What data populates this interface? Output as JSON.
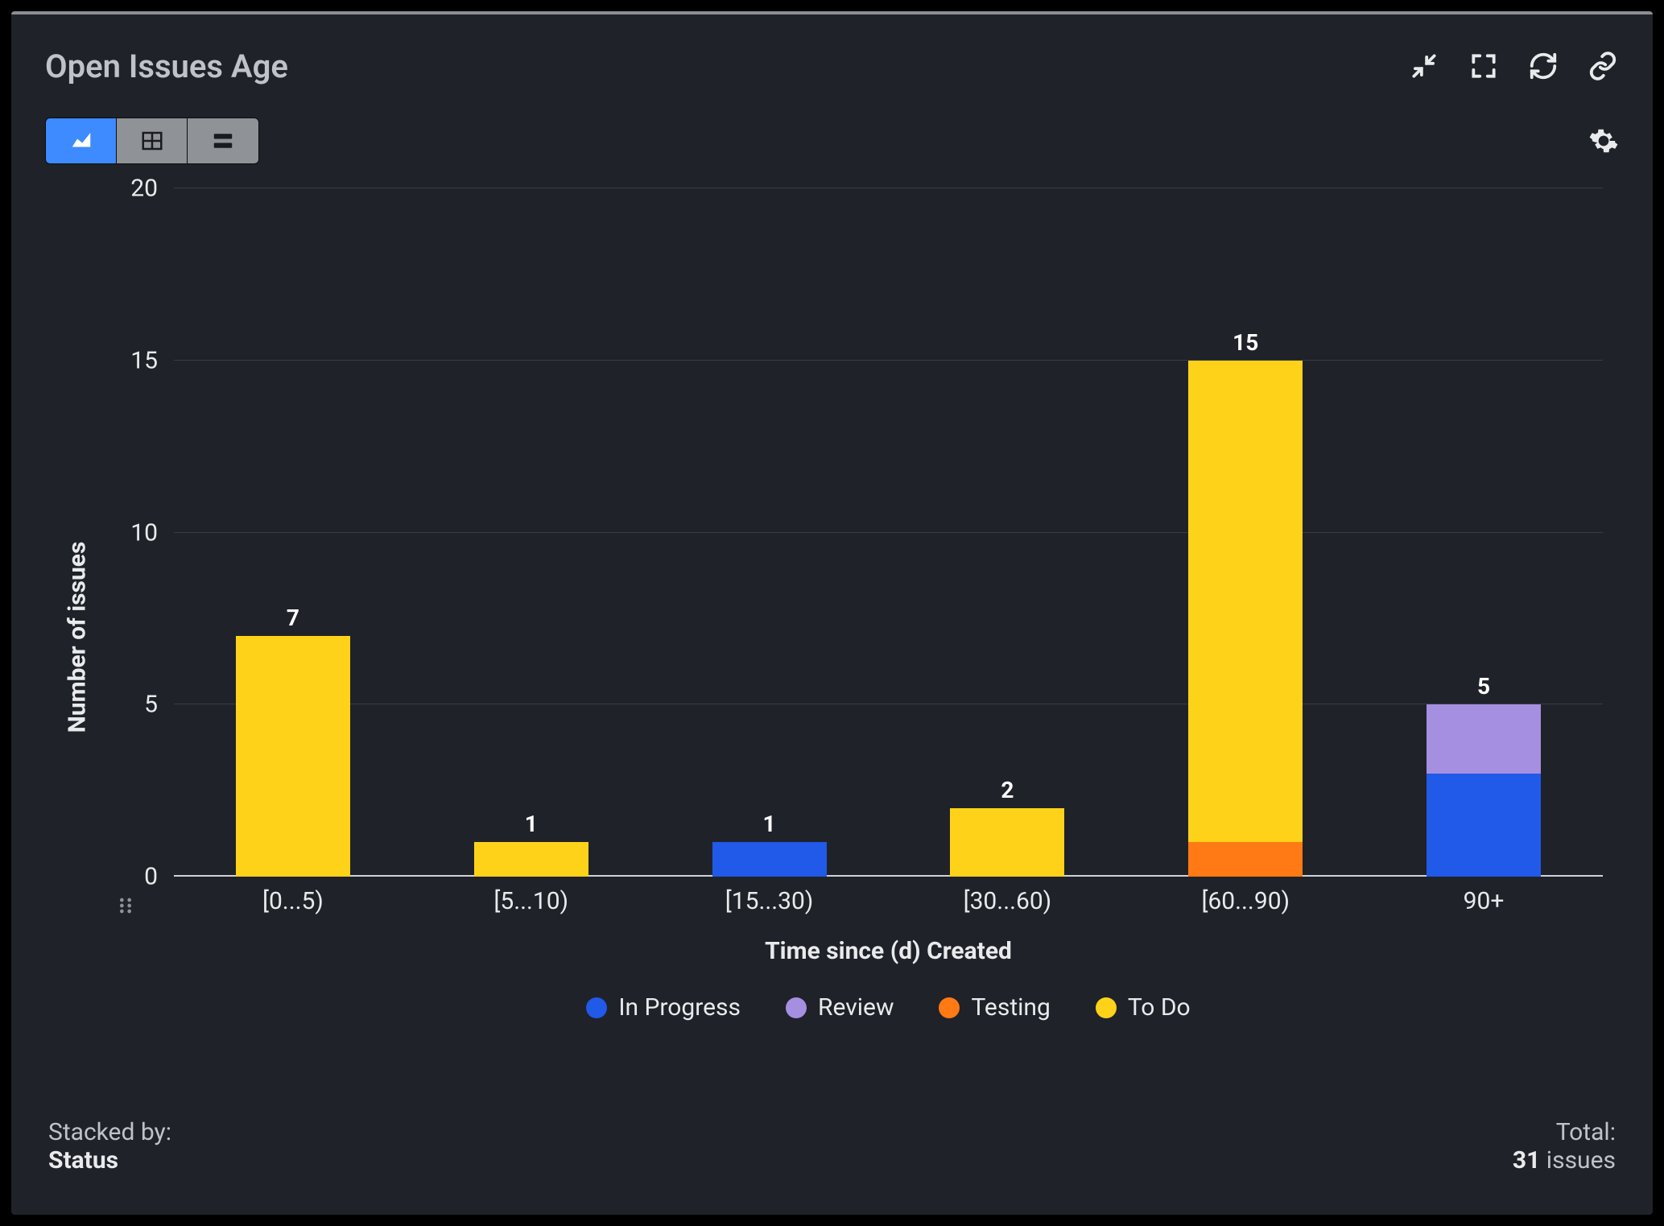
{
  "header": {
    "title": "Open Issues Age",
    "icons": [
      "collapse",
      "fullscreen",
      "refresh",
      "link"
    ]
  },
  "view_switch": {
    "options": [
      "chart",
      "table",
      "list"
    ],
    "active": "chart"
  },
  "chart": {
    "type": "stacked-bar",
    "background_color": "#1f2229",
    "grid_color": "#3a3d44",
    "axis_color": "#cfd2d6",
    "text_color": "#e9eaec",
    "tick_fontsize": 30,
    "axis_label_fontsize": 30,
    "bar_label_fontsize": 28,
    "bar_width_ratio": 0.48,
    "ylabel": "Number of issues",
    "xlabel": "Time since (d) Created",
    "ylim": [
      0,
      20
    ],
    "ytick_step": 5,
    "yticks": [
      0,
      5,
      10,
      15,
      20
    ],
    "categories": [
      "[0...5)",
      "[5...10)",
      "[15...30)",
      "[30...60)",
      "[60...90)",
      "90+"
    ],
    "series": [
      {
        "id": "in_progress",
        "label": "In Progress",
        "color": "#2159e8"
      },
      {
        "id": "review",
        "label": "Review",
        "color": "#a58fe0"
      },
      {
        "id": "testing",
        "label": "Testing",
        "color": "#ff7a14"
      },
      {
        "id": "to_do",
        "label": "To Do",
        "color": "#ffd21a"
      }
    ],
    "bars": [
      {
        "total": 7,
        "segments": [
          {
            "series": "to_do",
            "value": 7
          }
        ]
      },
      {
        "total": 1,
        "segments": [
          {
            "series": "to_do",
            "value": 1
          }
        ]
      },
      {
        "total": 1,
        "segments": [
          {
            "series": "in_progress",
            "value": 1
          }
        ]
      },
      {
        "total": 2,
        "segments": [
          {
            "series": "to_do",
            "value": 2
          }
        ]
      },
      {
        "total": 15,
        "segments": [
          {
            "series": "testing",
            "value": 1
          },
          {
            "series": "to_do",
            "value": 14
          }
        ]
      },
      {
        "total": 5,
        "segments": [
          {
            "series": "in_progress",
            "value": 3
          },
          {
            "series": "review",
            "value": 2
          }
        ]
      }
    ]
  },
  "footer": {
    "stacked_by_label": "Stacked by:",
    "stacked_by_value": "Status",
    "total_label": "Total:",
    "total_value": "31",
    "total_suffix": "issues"
  }
}
